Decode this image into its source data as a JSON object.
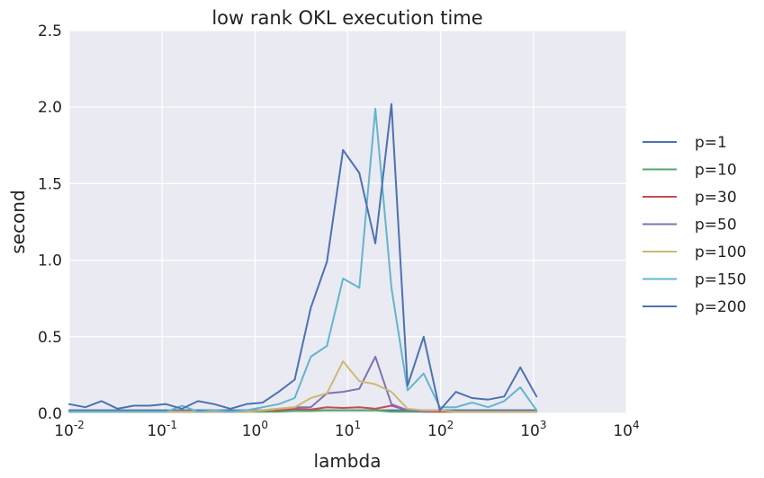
{
  "chart_data": {
    "type": "line",
    "title": "low rank OKL execution time",
    "xlabel": "lambda",
    "ylabel": "second",
    "xscale": "log",
    "xlim": [
      0.01,
      10000
    ],
    "ylim": [
      0,
      2.5
    ],
    "xticks": [
      {
        "base": "10",
        "exp": "-2"
      },
      {
        "base": "10",
        "exp": "-1"
      },
      {
        "base": "10",
        "exp": "0"
      },
      {
        "base": "10",
        "exp": "1"
      },
      {
        "base": "10",
        "exp": "2"
      },
      {
        "base": "10",
        "exp": "3"
      },
      {
        "base": "10",
        "exp": "4"
      }
    ],
    "yticks": [
      "0.0",
      "0.5",
      "1.0",
      "1.5",
      "2.0",
      "2.5"
    ],
    "grid": true,
    "legend_position": "right",
    "x": [
      0.01,
      0.0149,
      0.0222,
      0.0331,
      0.0494,
      0.0737,
      0.11,
      0.164,
      0.244,
      0.364,
      0.543,
      0.81,
      1.21,
      1.8,
      2.68,
      4.0,
      5.96,
      8.89,
      13.3,
      19.8,
      29.5,
      44.0,
      65.6,
      97.8,
      146,
      218,
      325,
      484,
      722,
      1077
    ],
    "series": [
      {
        "name": "p=1",
        "color": "#4c72b0",
        "values": [
          0.02,
          0.02,
          0.02,
          0.02,
          0.02,
          0.02,
          0.02,
          0.02,
          0.02,
          0.02,
          0.02,
          0.02,
          0.02,
          0.02,
          0.02,
          0.02,
          0.02,
          0.02,
          0.02,
          0.02,
          0.02,
          0.02,
          0.02,
          0.02,
          0.02,
          0.02,
          0.02,
          0.02,
          0.02,
          0.02
        ]
      },
      {
        "name": "p=10",
        "color": "#55a868",
        "values": [
          0.01,
          0.01,
          0.01,
          0.01,
          0.01,
          0.01,
          0.01,
          0.01,
          0.01,
          0.01,
          0.01,
          0.01,
          0.01,
          0.01,
          0.015,
          0.015,
          0.02,
          0.02,
          0.02,
          0.02,
          0.01,
          0.01,
          0.01,
          0.01,
          0.01,
          0.01,
          0.01,
          0.01,
          0.01,
          0.01
        ]
      },
      {
        "name": "p=30",
        "color": "#c44e52",
        "values": [
          0.01,
          0.01,
          0.01,
          0.01,
          0.01,
          0.01,
          0.01,
          0.01,
          0.01,
          0.01,
          0.01,
          0.01,
          0.02,
          0.02,
          0.03,
          0.025,
          0.04,
          0.035,
          0.04,
          0.03,
          0.05,
          0.02,
          0.01,
          0.01,
          0.01,
          0.01,
          0.01,
          0.01,
          0.01,
          0.01
        ]
      },
      {
        "name": "p=50",
        "color": "#8172b2",
        "values": [
          0.01,
          0.01,
          0.01,
          0.01,
          0.01,
          0.01,
          0.01,
          0.01,
          0.01,
          0.01,
          0.01,
          0.01,
          0.02,
          0.03,
          0.04,
          0.04,
          0.13,
          0.14,
          0.16,
          0.37,
          0.06,
          0.02,
          0.01,
          0.02,
          0.01,
          0.01,
          0.01,
          0.01,
          0.01,
          0.01
        ]
      },
      {
        "name": "p=100",
        "color": "#ccb974",
        "values": [
          0.01,
          0.01,
          0.01,
          0.01,
          0.01,
          0.01,
          0.01,
          0.01,
          0.01,
          0.01,
          0.01,
          0.01,
          0.02,
          0.03,
          0.04,
          0.1,
          0.13,
          0.34,
          0.21,
          0.19,
          0.14,
          0.03,
          0.02,
          0.02,
          0.01,
          0.01,
          0.01,
          0.01,
          0.01,
          0.01
        ]
      },
      {
        "name": "p=150",
        "color": "#64b5cd",
        "values": [
          0.01,
          0.01,
          0.01,
          0.01,
          0.01,
          0.01,
          0.01,
          0.05,
          0.01,
          0.02,
          0.01,
          0.02,
          0.04,
          0.06,
          0.1,
          0.37,
          0.44,
          0.88,
          0.82,
          1.99,
          0.82,
          0.15,
          0.26,
          0.04,
          0.04,
          0.07,
          0.04,
          0.08,
          0.17,
          0.02
        ]
      },
      {
        "name": "p=200",
        "color": "#4c72b0",
        "values": [
          0.06,
          0.04,
          0.08,
          0.03,
          0.05,
          0.05,
          0.06,
          0.03,
          0.08,
          0.06,
          0.03,
          0.06,
          0.07,
          0.14,
          0.22,
          0.69,
          0.99,
          1.72,
          1.57,
          1.11,
          2.02,
          0.18,
          0.5,
          0.02,
          0.14,
          0.1,
          0.09,
          0.11,
          0.3,
          0.11
        ]
      }
    ]
  }
}
